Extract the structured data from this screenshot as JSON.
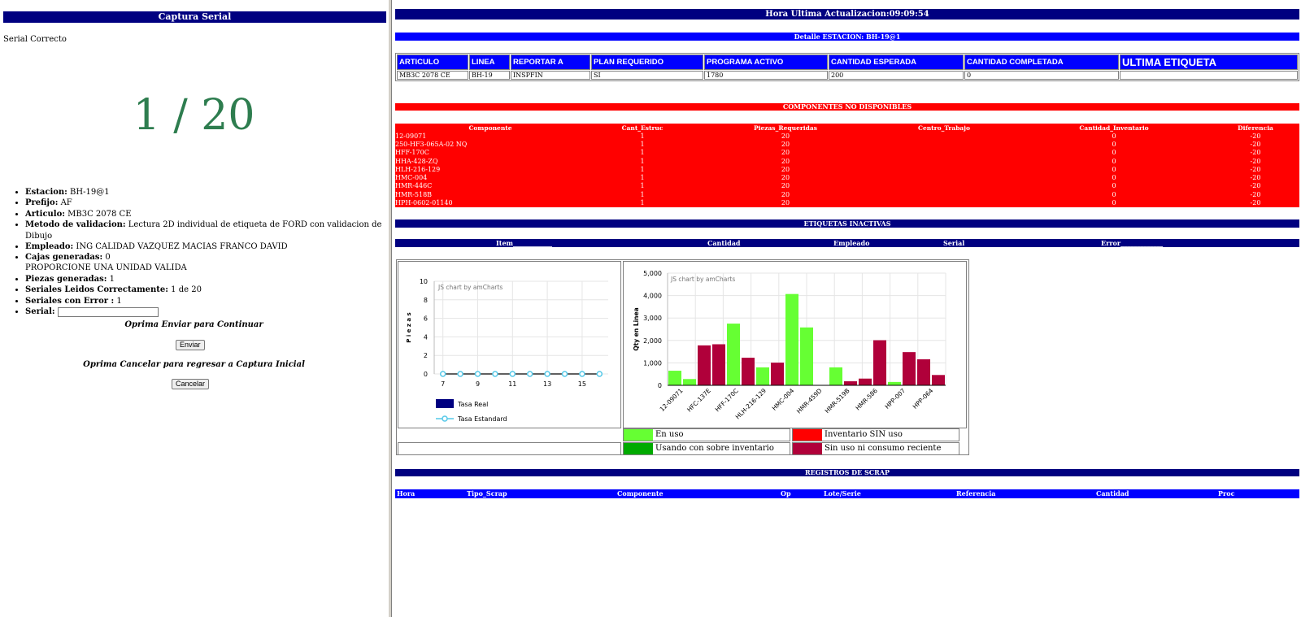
{
  "left": {
    "title": "Captura Serial",
    "status": "Serial Correcto",
    "counter": "1 / 20",
    "info": [
      {
        "label": "Estacion:",
        "value": " BH-19@1"
      },
      {
        "label": "Prefijo:",
        "value": " AF"
      },
      {
        "label": "Articulo:",
        "value": " MB3C 2078 CE"
      },
      {
        "label": "Metodo de validacion:",
        "value": " Lectura 2D individual de etiqueta de FORD con validacion de Dibujo"
      },
      {
        "label": "Empleado:",
        "value": " ING CALIDAD VAZQUEZ MACIAS FRANCO DAVID"
      },
      {
        "label": "Cajas generadas:",
        "value": " 0"
      }
    ],
    "proporcione": "PROPORCIONE UNA UNIDAD VALIDA",
    "info2": [
      {
        "label": "Piezas generadas:",
        "value": " 1"
      },
      {
        "label": "Seriales Leidos Correctamente:",
        "value": " 1 de 20"
      },
      {
        "label": "Seriales con Error :",
        "value": " 1"
      }
    ],
    "serial_label": "Serial:",
    "serial_value": "",
    "prompt_enviar": "Oprima Enviar para Continuar",
    "enviar_button": "Enviar",
    "prompt_cancelar": "Oprima Cancelar para regresar a Captura Inicial",
    "cancelar_button": "Cancelar"
  },
  "right": {
    "hora": "Hora Ultima Actualizacion:09:09:54",
    "detalle": "Detalle ESTACION: BH-19@1",
    "article_headers": [
      "ARTICULO",
      "LINEA",
      "REPORTAR A",
      "PLAN REQUERIDO",
      "PROGRAMA ACTIVO",
      "CANTIDAD ESPERADA",
      "CANTIDAD COMPLETADA",
      "ULTIMA ETIQUETA"
    ],
    "article_row": [
      "MB3C 2078 CE",
      "BH-19",
      "INSPFIN",
      "SI",
      "1780",
      "200",
      "0",
      ""
    ],
    "componentes_title": "COMPONENTES NO DISPONIBLES",
    "componentes_headers": [
      "Componente",
      "Cant_Estruc",
      "Piezas_Requeridas",
      "Centro_Trabajo",
      "Cantidad_Inventario",
      "Diferencia"
    ],
    "componentes_rows": [
      [
        "12-09071",
        "1",
        "20",
        "",
        "0",
        "-20"
      ],
      [
        "250-HF3-065A-02 NQ",
        "1",
        "20",
        "",
        "0",
        "-20"
      ],
      [
        "HFF-170C",
        "1",
        "20",
        "",
        "0",
        "-20"
      ],
      [
        "HHA-428-ZQ",
        "1",
        "20",
        "",
        "0",
        "-20"
      ],
      [
        "HLH-216-129",
        "1",
        "20",
        "",
        "0",
        "-20"
      ],
      [
        "HMC-004",
        "1",
        "20",
        "",
        "0",
        "-20"
      ],
      [
        "HMR-446C",
        "1",
        "20",
        "",
        "0",
        "-20"
      ],
      [
        "HMR-518B",
        "1",
        "20",
        "",
        "0",
        "-20"
      ],
      [
        "HPH-0602-01140",
        "1",
        "20",
        "",
        "0",
        "-20"
      ]
    ],
    "etiquetas_title": "ETIQUETAS INACTIVAS",
    "etiquetas_headers": [
      "Item____________",
      "Cantidad",
      "Empleado",
      "Serial",
      "Error_____________"
    ],
    "scrap_title": "REGISTROS DE SCRAP",
    "scrap_headers": [
      "Hora",
      "Tipo_Scrap",
      "Componente",
      "Op",
      "Lote/Serie",
      "Referencia",
      "Cantidad",
      "Proc"
    ]
  },
  "chart_data": [
    {
      "type": "line",
      "watermark": "JS chart by amCharts",
      "ylabel": "P i e z a s",
      "ylim": [
        0,
        10
      ],
      "yticks": [
        0,
        2,
        4,
        6,
        8,
        10
      ],
      "xlim": [
        6.5,
        16.5
      ],
      "xticks": [
        7,
        9,
        11,
        13,
        15
      ],
      "series": [
        {
          "name": "Tasa Real",
          "color": "#000080",
          "x": [],
          "values": []
        },
        {
          "name": "Tasa Estandard",
          "color": "#55c8e8",
          "x": [
            7,
            8,
            9,
            10,
            11,
            12,
            13,
            14,
            15,
            16
          ],
          "values": [
            0,
            0,
            0,
            0,
            0,
            0,
            0,
            0,
            0,
            0
          ]
        }
      ]
    },
    {
      "type": "bar",
      "watermark": "JS chart by amCharts",
      "ylabel": "Qty en Linea",
      "ylim": [
        0,
        5000
      ],
      "yticks": [
        0,
        1000,
        2000,
        3000,
        4000,
        5000
      ],
      "ytick_labels": [
        "0",
        "1,000",
        "2,000",
        "3,000",
        "4,000",
        "5,000"
      ],
      "xtick_labels": [
        "12-09071",
        "HFC-137E",
        "HFF-170C",
        "HLH-216-129",
        "HMC-004",
        "HMR-459D",
        "HMR-519B",
        "HMR-586",
        "HPP-007",
        "HPP-064"
      ],
      "bars": [
        {
          "value": 650,
          "color": "#66ff33"
        },
        {
          "value": 280,
          "color": "#66ff33"
        },
        {
          "value": 1780,
          "color": "#b0003a"
        },
        {
          "value": 1830,
          "color": "#b0003a"
        },
        {
          "value": 2750,
          "color": "#66ff33"
        },
        {
          "value": 1230,
          "color": "#b0003a"
        },
        {
          "value": 800,
          "color": "#66ff33"
        },
        {
          "value": 1010,
          "color": "#b0003a"
        },
        {
          "value": 4070,
          "color": "#66ff33"
        },
        {
          "value": 2580,
          "color": "#66ff33"
        },
        {
          "value": 0,
          "color": "#66ff33"
        },
        {
          "value": 800,
          "color": "#66ff33"
        },
        {
          "value": 180,
          "color": "#b0003a"
        },
        {
          "value": 300,
          "color": "#b0003a"
        },
        {
          "value": 2010,
          "color": "#b0003a"
        },
        {
          "value": 150,
          "color": "#66ff33"
        },
        {
          "value": 1480,
          "color": "#b0003a"
        },
        {
          "value": 1160,
          "color": "#b0003a"
        },
        {
          "value": 460,
          "color": "#b0003a"
        }
      ],
      "legend": [
        {
          "label": "En uso",
          "color": "#66ff33"
        },
        {
          "label": "Inventario SIN uso",
          "color": "#ff0000"
        },
        {
          "label": "Usando con sobre inventario",
          "color": "#00aa00"
        },
        {
          "label": "Sin uso ni consumo reciente",
          "color": "#b0003a"
        }
      ]
    }
  ]
}
